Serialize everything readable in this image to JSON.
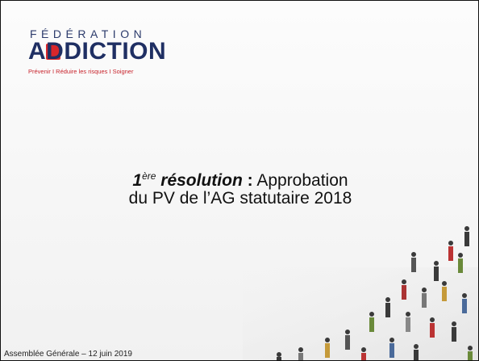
{
  "logo": {
    "federation": "FÉDÉRATION",
    "name": "ADDICTION",
    "tagline": "Prévenir I Réduire les risques I Soigner"
  },
  "title": {
    "number": "1",
    "ordinal": "ère",
    "keyword": "résolution",
    "separator": ":",
    "line1": "Approbation",
    "line2": "du PV de l’AG statutaire 2018"
  },
  "footer": "Assemblée Générale – 12 juin 2019"
}
